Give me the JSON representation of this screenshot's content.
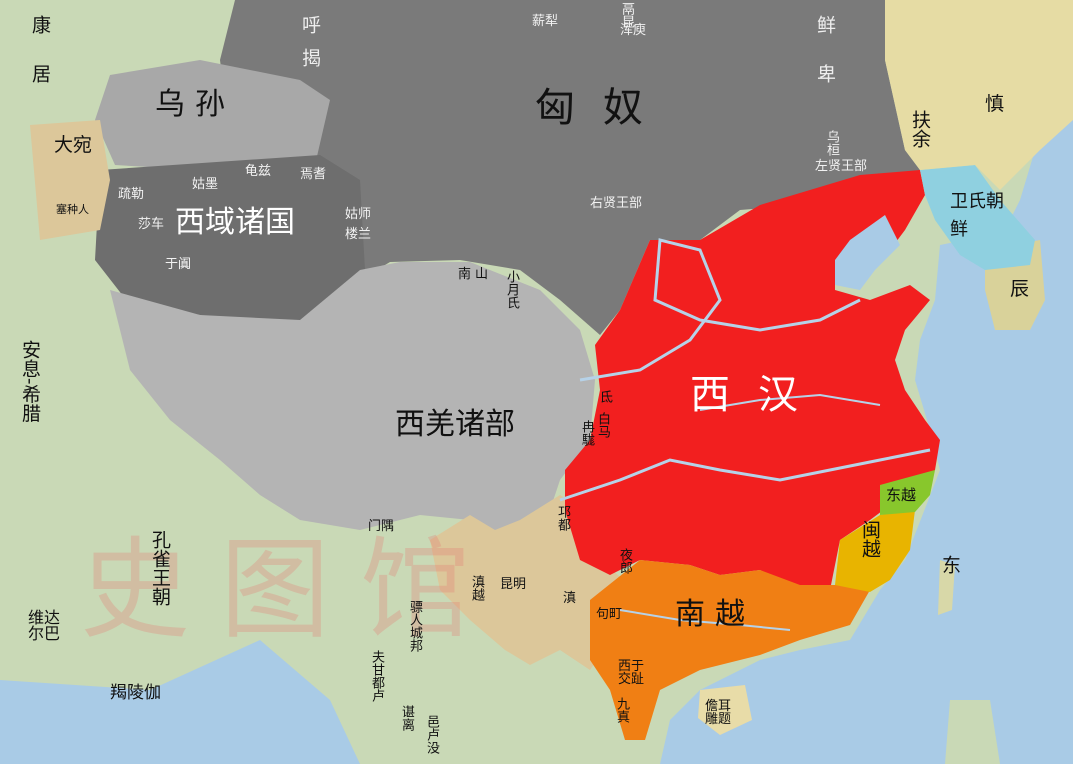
{
  "colors": {
    "ocean": "#a9cbe6",
    "land": "#c9d9b6",
    "xiongnu": "#7a7a7a",
    "western_regions": "#6e6e6e",
    "wusun": "#a8a8a8",
    "qiang": "#b4b4b4",
    "han": "#f21f1f",
    "nanyue": "#f07f14",
    "minyue": "#e8b400",
    "dongyue": "#88c72c",
    "weiman": "#8fd0e0",
    "southwest": "#dcc79a",
    "east": "#e6dca4"
  },
  "watermark": "史图馆",
  "labels": {
    "xiongnu": "匈奴",
    "hujie": "呼揭",
    "xinli": "薪犁",
    "geku": "鬲昆",
    "hunyu": "浑庾",
    "xianbei": "鲜卑",
    "wuhuan": "乌桓",
    "zuoxian": "左贤王部",
    "youxian": "右贤王部",
    "wusun": "乌孙",
    "dayuan": "大宛",
    "saizhong": "塞种人",
    "kangju": "康居",
    "xiyu": "西域诸国",
    "shule": "疏勒",
    "shache": "莎车",
    "yutian": "于阗",
    "gumo": "姑墨",
    "qiuci": "龟兹",
    "yanqi": "焉耆",
    "gushi": "姑师",
    "loulan": "楼兰",
    "xiqiang": "西羌诸部",
    "nanshan": "南山",
    "xiaoyue": "小月氏",
    "baima": "白马",
    "di": "氐",
    "ranmang": "冉駹",
    "xihan": "西汉",
    "nanyue": "南越",
    "minyue": "闽越",
    "dongyue": "东越",
    "weishi": "卫氏朝鲜",
    "fuyu": "扶余",
    "sushen": "慎",
    "chen": "辰",
    "qiongdu": "邛都",
    "kunming": "昆明",
    "dian": "滇",
    "dianyue": "滇越",
    "yelang": "夜郎",
    "juding": "句町",
    "biao": "骠人城邦",
    "fugan": "夫甘都卢",
    "chenli": "谌离",
    "yilu": "邑卢没",
    "jiaozhi": "西于交趾",
    "jiuzhen": "九真",
    "danzhou": "儋耳雕题",
    "dong": "东",
    "anxi": "安息-希腊",
    "kongque": "孔雀王朝",
    "weida": "维达尔巴",
    "jieling": "羯陵伽",
    "men": "门隅"
  }
}
